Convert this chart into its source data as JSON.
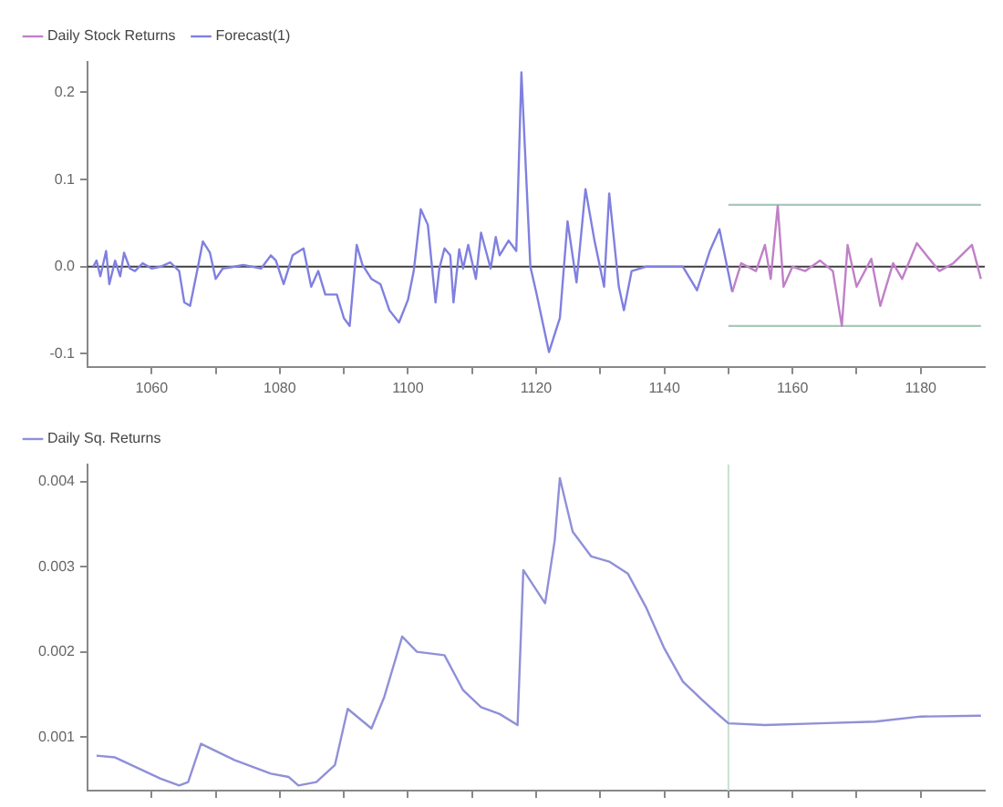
{
  "chart_data": [
    {
      "type": "line",
      "xlim": [
        1050,
        1190
      ],
      "ylim": [
        -0.115,
        0.235
      ],
      "xticks": [
        {
          "value": 1060,
          "label": "1060"
        },
        {
          "value": 1070,
          "label": null
        },
        {
          "value": 1080,
          "label": "1080"
        },
        {
          "value": 1090,
          "label": null
        },
        {
          "value": 1100,
          "label": "1100"
        },
        {
          "value": 1110,
          "label": null
        },
        {
          "value": 1120,
          "label": "1120"
        },
        {
          "value": 1130,
          "label": null
        },
        {
          "value": 1140,
          "label": "1140"
        },
        {
          "value": 1150,
          "label": null
        },
        {
          "value": 1160,
          "label": "1160"
        },
        {
          "value": 1170,
          "label": null
        },
        {
          "value": 1180,
          "label": "1180"
        }
      ],
      "yticks": [
        {
          "value": -0.1,
          "label": "-0.1"
        },
        {
          "value": 0,
          "label": "0.0"
        },
        {
          "value": 0.1,
          "label": "0.1"
        },
        {
          "value": 0.2,
          "label": "0.2"
        }
      ],
      "grid": false,
      "legend": "top left",
      "marker": "none",
      "line_style": "solid",
      "ref_lines": [
        {
          "axis": "y",
          "value": 0,
          "color": "#404040"
        }
      ],
      "series": [
        {
          "name": "Daily Stock Returns",
          "color": "#c080c8",
          "x": [
            1150.6,
            1152,
            1154.3,
            1155.7,
            1156.6,
            1157.7,
            1158.6,
            1160,
            1162,
            1164.3,
            1166.3,
            1167.7,
            1168.6,
            1170,
            1172.3,
            1173.7,
            1175.7,
            1177.1,
            1179.4,
            1180.9,
            1182.9,
            1185.1,
            1188,
            1189.4
          ],
          "values": [
            -0.029,
            0.004,
            -0.005,
            0.025,
            -0.014,
            0.07,
            -0.023,
            0,
            -0.005,
            0.007,
            -0.005,
            -0.068,
            0.025,
            -0.023,
            0.009,
            -0.045,
            0.004,
            -0.014,
            0.027,
            0.013,
            -0.005,
            0.004,
            0.025,
            -0.014
          ]
        },
        {
          "name": "Forecast(1)",
          "color": "#8080e0",
          "x": [
            1050.9,
            1051.4,
            1052,
            1052.9,
            1053.4,
            1054.3,
            1055.1,
            1055.7,
            1056.6,
            1057.4,
            1058.6,
            1060,
            1061.4,
            1062.9,
            1064.3,
            1065.1,
            1066,
            1067.1,
            1068,
            1069.1,
            1070,
            1071.1,
            1072.9,
            1074.3,
            1077.1,
            1078.6,
            1079.4,
            1080.6,
            1082,
            1083.7,
            1084.9,
            1086,
            1087.1,
            1088.9,
            1090,
            1090.9,
            1092,
            1092.9,
            1094.3,
            1095.7,
            1097.1,
            1098.6,
            1100,
            1100.9,
            1102,
            1103.1,
            1104.3,
            1104.9,
            1105.7,
            1106.6,
            1107.1,
            1108,
            1108.6,
            1109.4,
            1110.6,
            1111.4,
            1112.9,
            1113.7,
            1114.3,
            1115.7,
            1116.9,
            1117.7,
            1119.1,
            1120,
            1122,
            1123.7,
            1124.9,
            1126.3,
            1127.7,
            1129.1,
            1130.6,
            1131.4,
            1132.9,
            1133.7,
            1134.9,
            1137.1,
            1142.9,
            1145.1,
            1147.1,
            1148.6,
            1150.6
          ],
          "values": [
            0,
            0.007,
            -0.011,
            0.018,
            -0.02,
            0.007,
            -0.011,
            0.016,
            -0.002,
            -0.005,
            0.004,
            -0.002,
            0,
            0.005,
            -0.005,
            -0.041,
            -0.045,
            -0.005,
            0.029,
            0.016,
            -0.014,
            -0.002,
            0,
            0.002,
            -0.002,
            0.013,
            0.007,
            -0.02,
            0.013,
            0.021,
            -0.023,
            -0.005,
            -0.032,
            -0.032,
            -0.059,
            -0.068,
            0.025,
            0.002,
            -0.014,
            -0.02,
            -0.05,
            -0.064,
            -0.038,
            -0.005,
            0.066,
            0.048,
            -0.041,
            -0.002,
            0.021,
            0.013,
            -0.041,
            0.02,
            -0.002,
            0.025,
            -0.014,
            0.039,
            -0.002,
            0.034,
            0.013,
            0.03,
            0.018,
            0.223,
            0,
            -0.029,
            -0.098,
            -0.059,
            0.052,
            -0.018,
            0.089,
            0.03,
            -0.023,
            0.084,
            -0.023,
            -0.05,
            -0.005,
            0,
            0,
            -0.027,
            0.018,
            0.043,
            -0.029
          ]
        },
        {
          "color": "#a8c8b8",
          "x": [
            1150,
            1189.4
          ],
          "values": [
            0.071,
            0.071
          ]
        },
        {
          "color": "#a8c8b8",
          "x": [
            1150,
            1189.4
          ],
          "values": [
            -0.068,
            -0.068
          ]
        }
      ]
    },
    {
      "type": "line",
      "xlim": [
        1050,
        1190
      ],
      "ylim": [
        0.00037,
        0.0042
      ],
      "tick_labels": "y",
      "xticks": [
        1060,
        1070,
        1080,
        1090,
        1100,
        1110,
        1120,
        1130,
        1140,
        1150,
        1160,
        1170,
        1180
      ],
      "yticks": [
        0.001,
        0.002,
        0.003,
        0.004
      ],
      "grid": false,
      "legend": "top left",
      "marker": "none",
      "line_style": "solid",
      "ref_lines": [
        {
          "axis": "x",
          "value": 1150,
          "color": "#c8e0d0"
        }
      ],
      "series": [
        {
          "name": "Daily Sq. Returns",
          "color": "#9090d8",
          "x": [
            1051.4,
            1054.3,
            1061.4,
            1064.3,
            1065.7,
            1067.7,
            1072.9,
            1078.6,
            1081.4,
            1082.9,
            1085.7,
            1088.6,
            1090.6,
            1094.3,
            1096.3,
            1099.1,
            1101.4,
            1105.7,
            1108.6,
            1111.4,
            1114.3,
            1117.1,
            1118,
            1121.4,
            1122.9,
            1123.7,
            1125.7,
            1128.6,
            1131.4,
            1134.3,
            1137.1,
            1140,
            1142.9,
            1145.7,
            1148,
            1150,
            1155.7,
            1164.3,
            1172.9,
            1180,
            1189.4
          ],
          "values": [
            0.00078,
            0.00076,
            0.00051,
            0.00043,
            0.00047,
            0.00092,
            0.00073,
            0.00057,
            0.00053,
            0.00043,
            0.00047,
            0.00067,
            0.00133,
            0.0011,
            0.00147,
            0.00218,
            0.002,
            0.00196,
            0.00155,
            0.00135,
            0.00127,
            0.00114,
            0.00296,
            0.00257,
            0.00331,
            0.00404,
            0.00341,
            0.00312,
            0.00306,
            0.00292,
            0.00253,
            0.00204,
            0.00165,
            0.00145,
            0.00129,
            0.00116,
            0.00114,
            0.00116,
            0.00118,
            0.00124,
            0.00125
          ]
        }
      ]
    }
  ]
}
